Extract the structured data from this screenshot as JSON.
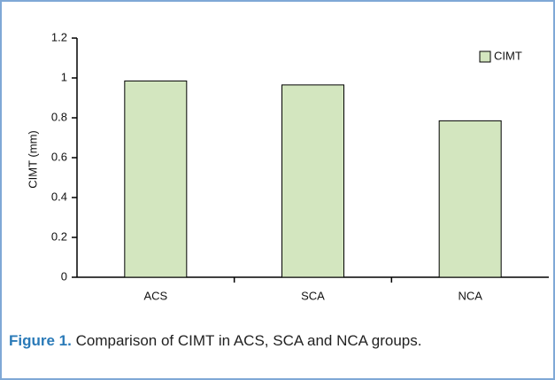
{
  "chart_data": {
    "type": "bar",
    "ylabel": "CIMT (mm)",
    "categories": [
      "ACS",
      "SCA",
      "NCA"
    ],
    "series": [
      {
        "name": "CIMT",
        "color": "#d3e6bf",
        "values": [
          0.985,
          0.965,
          0.785
        ]
      }
    ],
    "ylim": [
      0,
      1.2
    ],
    "yticks": [
      0,
      0.2,
      0.4,
      0.6,
      0.8,
      1,
      1.2
    ],
    "legend": "upper right",
    "grid": false
  },
  "caption": {
    "label": "Figure 1.",
    "text": "Comparison of CIMT in ACS, SCA and NCA groups."
  }
}
